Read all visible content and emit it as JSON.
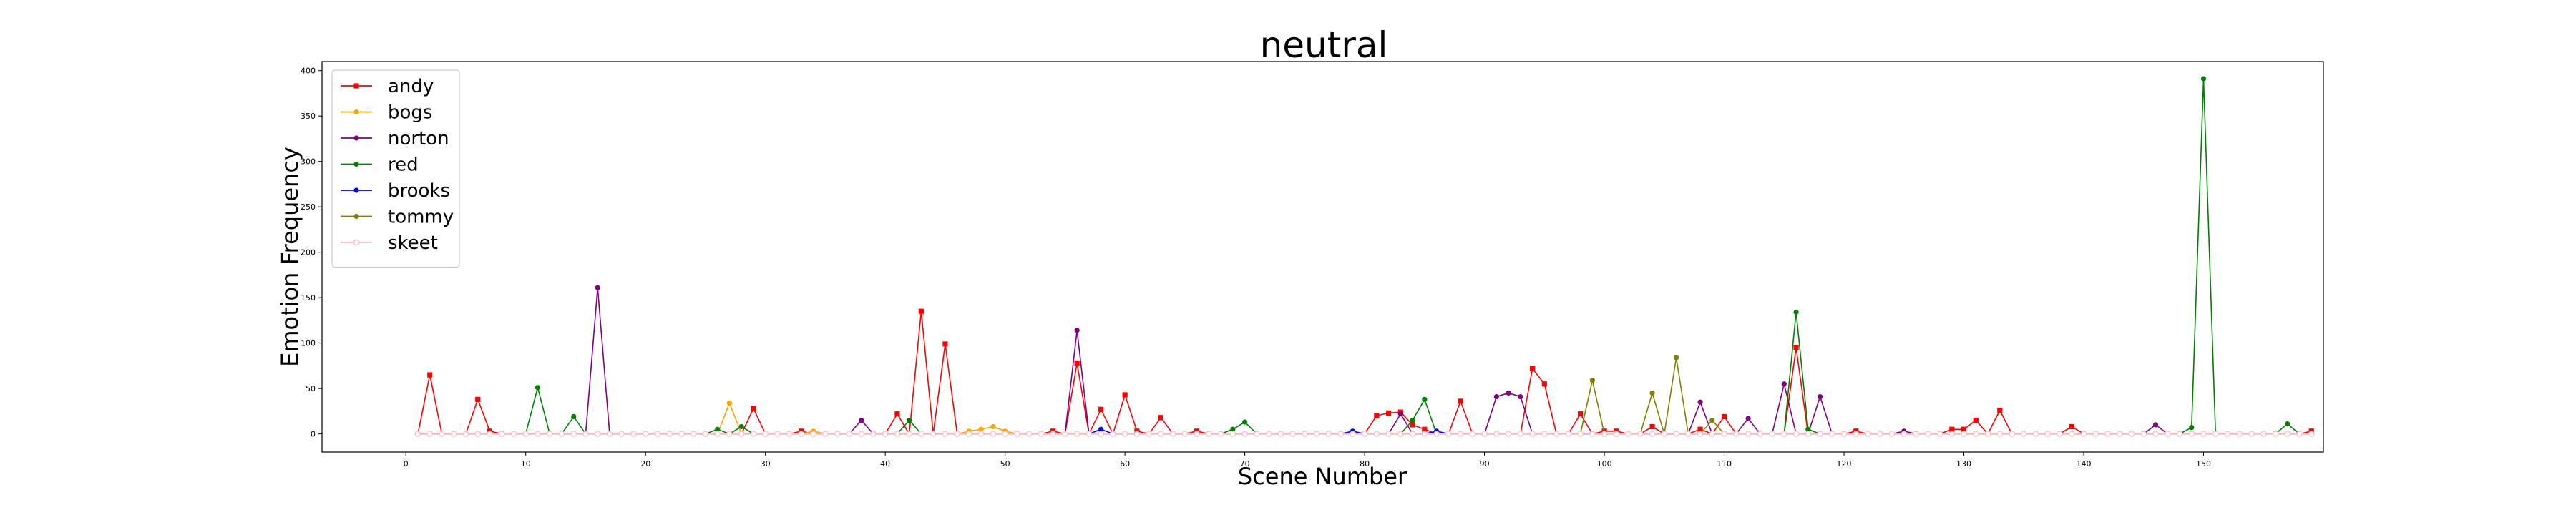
{
  "chart_data": {
    "type": "line",
    "title": "neutral",
    "xlabel": "Scene Number",
    "ylabel": "Emotion Frequency",
    "xlim": [
      -7,
      160
    ],
    "ylim": [
      -20,
      410
    ],
    "xticks": [
      0,
      10,
      20,
      30,
      40,
      50,
      60,
      70,
      80,
      90,
      100,
      110,
      120,
      130,
      140,
      150
    ],
    "yticks": [
      0,
      50,
      100,
      150,
      200,
      250,
      300,
      350,
      400
    ],
    "legend_position": "upper left",
    "x_start": 1,
    "x_end": 159,
    "series": [
      {
        "name": "andy",
        "color": "#ff0000",
        "marker": "square",
        "points": {
          "2": 65,
          "6": 38,
          "7": 3,
          "29": 28,
          "33": 3,
          "41": 22,
          "43": 135,
          "45": 99,
          "54": 3,
          "56": 78,
          "58": 27,
          "60": 43,
          "61": 3,
          "63": 18,
          "66": 3,
          "81": 20,
          "82": 23,
          "83": 24,
          "84": 10,
          "85": 5,
          "88": 36,
          "94": 72,
          "95": 55,
          "98": 22,
          "100": 3,
          "101": 3,
          "104": 8,
          "108": 5,
          "110": 19,
          "116": 95,
          "121": 3,
          "129": 5,
          "130": 5,
          "131": 15,
          "133": 26,
          "139": 8,
          "159": 3
        }
      },
      {
        "name": "bogs",
        "color": "#ffa500",
        "marker": "circle",
        "points": {
          "27": 34,
          "34": 3,
          "47": 3,
          "48": 5,
          "49": 8,
          "50": 3
        }
      },
      {
        "name": "norton",
        "color": "#800080",
        "marker": "circle",
        "points": {
          "16": 161,
          "38": 15,
          "56": 114,
          "83": 22,
          "91": 41,
          "92": 45,
          "93": 41,
          "108": 35,
          "112": 17,
          "115": 55,
          "118": 41,
          "125": 3,
          "146": 10
        }
      },
      {
        "name": "red",
        "color": "#008000",
        "marker": "circle",
        "points": {
          "11": 51,
          "14": 19,
          "26": 5,
          "28": 8,
          "42": 15,
          "69": 5,
          "70": 13,
          "84": 15,
          "85": 38,
          "116": 134,
          "117": 5,
          "149": 7,
          "150": 391,
          "157": 11
        }
      },
      {
        "name": "brooks",
        "color": "#0000ff",
        "marker": "circle",
        "points": {
          "58": 5,
          "79": 3,
          "86": 3
        }
      },
      {
        "name": "tommy",
        "color": "#808000",
        "marker": "circle",
        "points": {
          "99": 59,
          "104": 45,
          "106": 84,
          "109": 15
        }
      },
      {
        "name": "skeet",
        "color": "#ffb6c1",
        "marker": "hollow-circle",
        "points": {}
      }
    ]
  }
}
